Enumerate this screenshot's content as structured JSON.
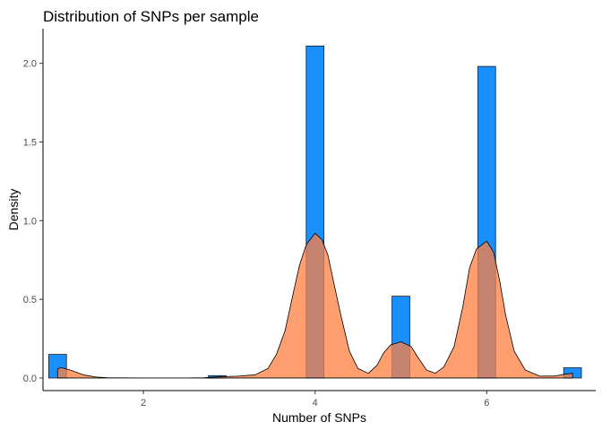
{
  "chart_data": {
    "type": "histogram",
    "title": "Distribution of SNPs per sample",
    "xlabel": "Number of SNPs",
    "ylabel": "Density",
    "xlim": [
      0.83,
      7.27
    ],
    "ylim": [
      -0.08,
      2.22
    ],
    "x_ticks": [
      2,
      4,
      6
    ],
    "y_ticks": [
      0.0,
      0.5,
      1.0,
      1.5,
      2.0
    ],
    "y_tick_labels": [
      "0.0",
      "0.5",
      "1.0",
      "1.5",
      "2.0"
    ],
    "grid": false,
    "histogram": {
      "fill": "#1a8fff",
      "bin_width": 0.2069,
      "bins": [
        {
          "x": 1.0,
          "density": 0.15
        },
        {
          "x": 2.86,
          "density": 0.015
        },
        {
          "x": 4.0,
          "density": 2.11
        },
        {
          "x": 5.0,
          "density": 0.52
        },
        {
          "x": 6.0,
          "density": 1.98
        },
        {
          "x": 7.0,
          "density": 0.065
        }
      ]
    },
    "density": {
      "fill": "#ff7f40",
      "fill_opacity": 0.75,
      "x": [
        1.0,
        1.05,
        1.15,
        1.3,
        1.45,
        1.6,
        2.0,
        2.5,
        2.7,
        2.9,
        3.1,
        3.3,
        3.45,
        3.55,
        3.65,
        3.75,
        3.82,
        3.9,
        4.0,
        4.08,
        4.15,
        4.22,
        4.3,
        4.4,
        4.5,
        4.62,
        4.72,
        4.8,
        4.88,
        5.0,
        5.12,
        5.2,
        5.3,
        5.4,
        5.5,
        5.62,
        5.72,
        5.8,
        5.88,
        6.0,
        6.08,
        6.15,
        6.22,
        6.32,
        6.45,
        6.62,
        6.8,
        6.92,
        7.0
      ],
      "y": [
        0.06,
        0.065,
        0.05,
        0.02,
        0.006,
        0.001,
        0.0,
        0.0,
        0.002,
        0.008,
        0.012,
        0.02,
        0.06,
        0.15,
        0.3,
        0.55,
        0.72,
        0.85,
        0.92,
        0.88,
        0.78,
        0.6,
        0.4,
        0.17,
        0.06,
        0.03,
        0.08,
        0.16,
        0.21,
        0.23,
        0.2,
        0.13,
        0.05,
        0.03,
        0.07,
        0.2,
        0.45,
        0.7,
        0.82,
        0.87,
        0.8,
        0.62,
        0.4,
        0.17,
        0.05,
        0.012,
        0.013,
        0.025,
        0.03
      ]
    }
  }
}
